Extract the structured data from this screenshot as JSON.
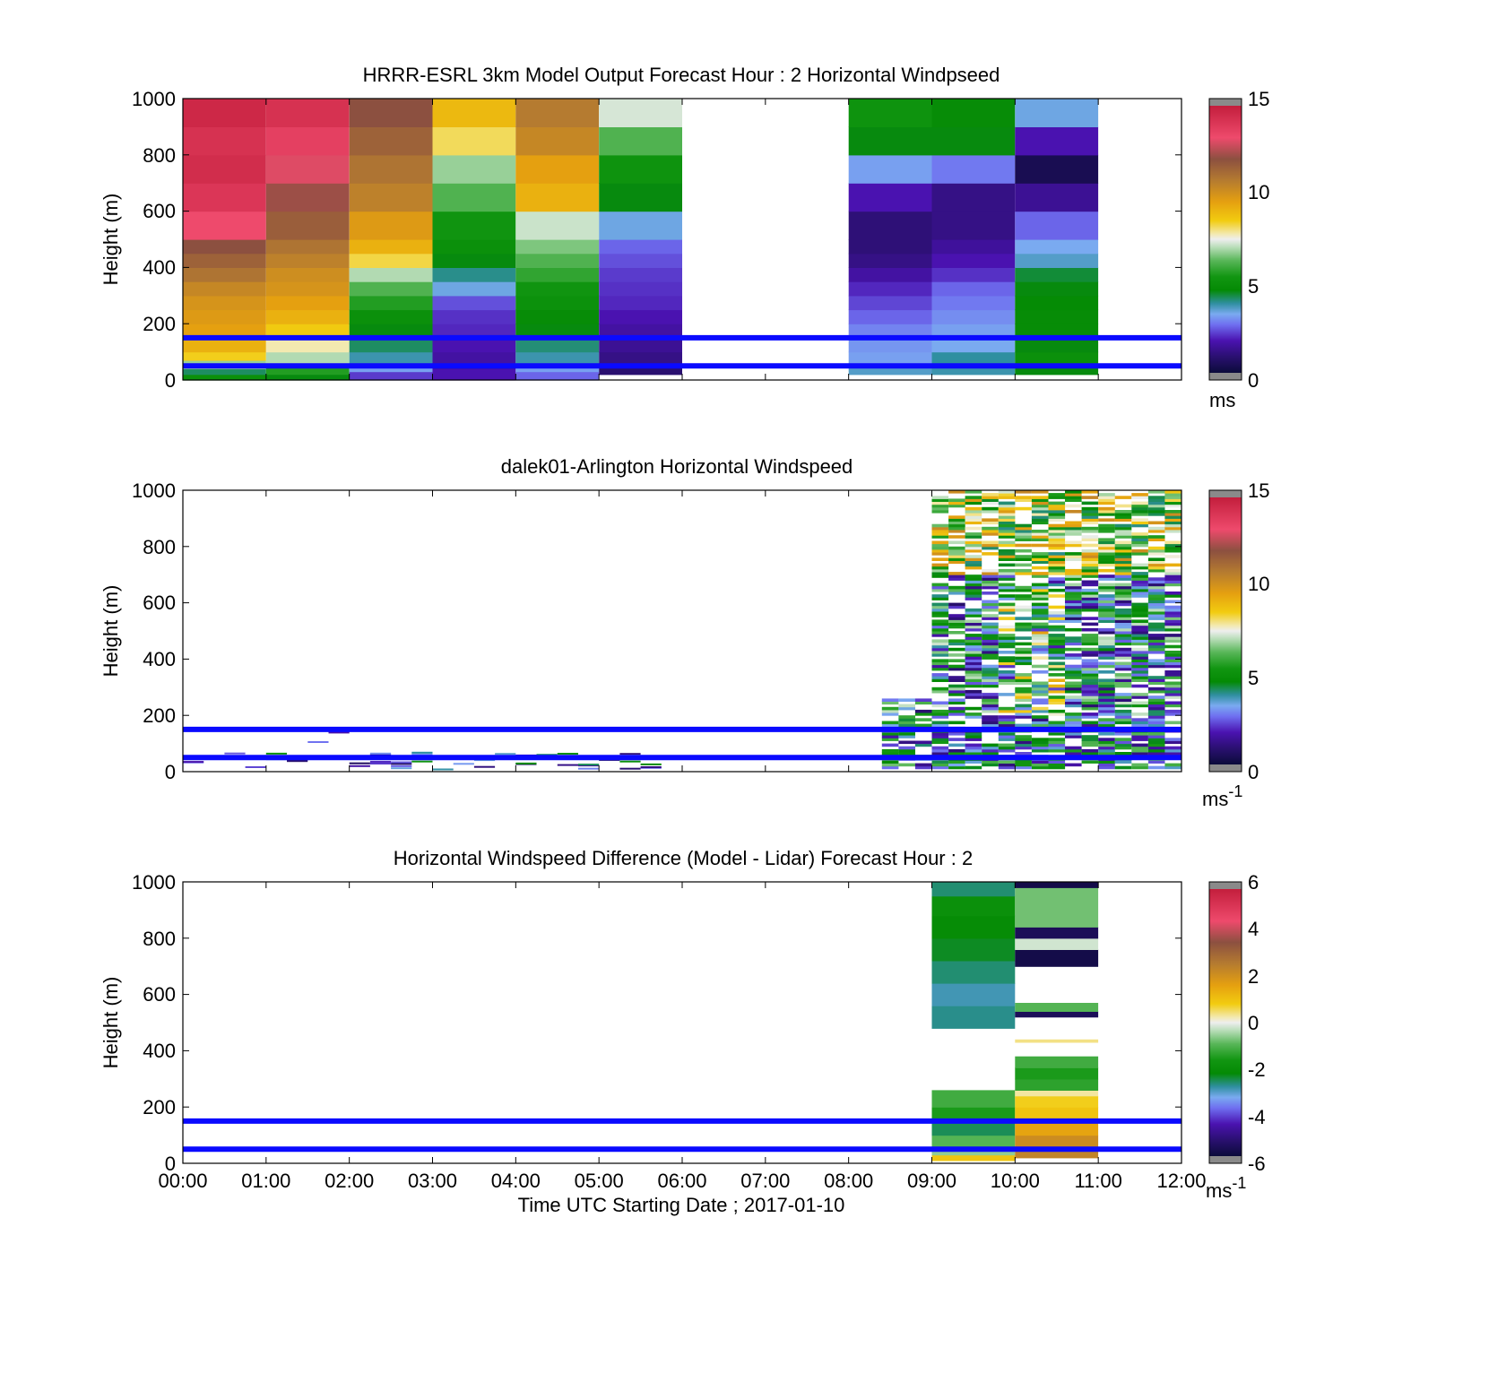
{
  "chart_data": [
    {
      "type": "heatmap",
      "title": "HRRR-ESRL 3km Model Output   Forecast Hour : 2 Horizontal Windpseed",
      "ylabel": "Height (m)",
      "ylim": [
        0,
        1000
      ],
      "yticks": [
        "0",
        "200",
        "400",
        "600",
        "800",
        "1000"
      ],
      "x_range_hours": [
        0,
        12
      ],
      "colorbar": {
        "min": 0,
        "max": 15,
        "ticks": [
          "0",
          "5",
          "10",
          "15"
        ],
        "unit": "ms"
      },
      "reference_lines_m": [
        50,
        150
      ],
      "columns": [
        {
          "x0": 0,
          "x1": 1,
          "cells": [
            [
              0,
              20,
              5
            ],
            [
              20,
              40,
              4.2
            ],
            [
              40,
              70,
              6.8
            ],
            [
              70,
              100,
              8.5
            ],
            [
              100,
              150,
              9.2
            ],
            [
              150,
              200,
              9.6
            ],
            [
              200,
              250,
              9.8
            ],
            [
              250,
              300,
              10
            ],
            [
              300,
              350,
              10.4
            ],
            [
              350,
              400,
              11
            ],
            [
              400,
              450,
              11.5
            ],
            [
              450,
              500,
              12
            ],
            [
              500,
              600,
              13.2
            ],
            [
              600,
              700,
              14
            ],
            [
              700,
              800,
              14.4
            ],
            [
              800,
              900,
              14.2
            ],
            [
              900,
              1000,
              14.6
            ]
          ]
        },
        {
          "x0": 1,
          "x1": 2,
          "cells": [
            [
              0,
              20,
              4.6
            ],
            [
              20,
              50,
              5.6
            ],
            [
              50,
              100,
              7
            ],
            [
              100,
              150,
              7.8
            ],
            [
              150,
              200,
              8.6
            ],
            [
              200,
              250,
              9.2
            ],
            [
              250,
              300,
              9.6
            ],
            [
              300,
              350,
              10
            ],
            [
              350,
              400,
              10.2
            ],
            [
              400,
              450,
              10.6
            ],
            [
              450,
              500,
              11
            ],
            [
              500,
              600,
              11.6
            ],
            [
              600,
              700,
              12.2
            ],
            [
              700,
              800,
              13
            ],
            [
              800,
              900,
              13.6
            ],
            [
              900,
              1000,
              14.2
            ]
          ]
        },
        {
          "x0": 2,
          "x1": 3,
          "cells": [
            [
              0,
              30,
              2.2
            ],
            [
              30,
              60,
              3.2
            ],
            [
              60,
              100,
              3.8
            ],
            [
              100,
              150,
              4.2
            ],
            [
              150,
              200,
              4.6
            ],
            [
              200,
              250,
              5
            ],
            [
              250,
              300,
              5.6
            ],
            [
              300,
              350,
              6.2
            ],
            [
              350,
              400,
              7
            ],
            [
              400,
              450,
              8.3
            ],
            [
              450,
              500,
              9.2
            ],
            [
              500,
              600,
              9.8
            ],
            [
              600,
              700,
              10.6
            ],
            [
              700,
              800,
              11
            ],
            [
              800,
              900,
              11.5
            ],
            [
              900,
              1000,
              12
            ]
          ]
        },
        {
          "x0": 3,
          "x1": 4,
          "cells": [
            [
              0,
              40,
              1.8
            ],
            [
              40,
              100,
              1.6
            ],
            [
              100,
              150,
              1.8
            ],
            [
              150,
              200,
              2
            ],
            [
              200,
              250,
              2.1
            ],
            [
              250,
              300,
              2.4
            ],
            [
              300,
              350,
              3.4
            ],
            [
              350,
              400,
              4
            ],
            [
              400,
              450,
              4.6
            ],
            [
              450,
              500,
              5
            ],
            [
              500,
              600,
              5.3
            ],
            [
              600,
              700,
              6.2
            ],
            [
              700,
              800,
              6.8
            ],
            [
              800,
              900,
              8.2
            ],
            [
              900,
              1000,
              9
            ]
          ]
        },
        {
          "x0": 4,
          "x1": 5,
          "cells": [
            [
              0,
              30,
              2.6
            ],
            [
              30,
              60,
              3.2
            ],
            [
              60,
              100,
              3.8
            ],
            [
              100,
              150,
              4.1
            ],
            [
              150,
              200,
              4.6
            ],
            [
              200,
              250,
              4.8
            ],
            [
              250,
              300,
              5.1
            ],
            [
              300,
              350,
              5.3
            ],
            [
              350,
              400,
              5.8
            ],
            [
              400,
              450,
              6.2
            ],
            [
              450,
              500,
              6.6
            ],
            [
              500,
              600,
              7.2
            ],
            [
              600,
              700,
              9.2
            ],
            [
              700,
              800,
              9.6
            ],
            [
              800,
              900,
              10.4
            ],
            [
              900,
              1000,
              10.8
            ]
          ]
        },
        {
          "x0": 5,
          "x1": 6,
          "cells": [
            [
              20,
              60,
              0.9
            ],
            [
              60,
              100,
              1.2
            ],
            [
              100,
              150,
              1.4
            ],
            [
              150,
              200,
              1.6
            ],
            [
              200,
              250,
              1.8
            ],
            [
              250,
              300,
              2
            ],
            [
              300,
              350,
              2.1
            ],
            [
              350,
              400,
              2.2
            ],
            [
              400,
              450,
              2.4
            ],
            [
              450,
              500,
              2.6
            ],
            [
              500,
              600,
              3.4
            ],
            [
              600,
              700,
              4.6
            ],
            [
              700,
              800,
              5.2
            ],
            [
              800,
              900,
              6.2
            ],
            [
              900,
              1000,
              7.3
            ]
          ]
        },
        {
          "x0": 8,
          "x1": 9,
          "cells": [
            [
              20,
              60,
              3.6
            ],
            [
              60,
              100,
              3.2
            ],
            [
              100,
              150,
              3.1
            ],
            [
              150,
              200,
              2.9
            ],
            [
              200,
              250,
              2.6
            ],
            [
              250,
              300,
              2.3
            ],
            [
              300,
              350,
              2
            ],
            [
              350,
              400,
              1.6
            ],
            [
              400,
              450,
              1.2
            ],
            [
              450,
              500,
              1
            ],
            [
              500,
              600,
              1
            ],
            [
              600,
              700,
              1.8
            ],
            [
              700,
              800,
              3.2
            ],
            [
              800,
              900,
              4.6
            ],
            [
              900,
              1000,
              5.2
            ]
          ]
        },
        {
          "x0": 9,
          "x1": 10,
          "cells": [
            [
              20,
              60,
              3.8
            ],
            [
              60,
              100,
              3.9
            ],
            [
              100,
              150,
              3.3
            ],
            [
              150,
              200,
              3.2
            ],
            [
              200,
              250,
              3
            ],
            [
              250,
              300,
              2.8
            ],
            [
              300,
              350,
              2.6
            ],
            [
              350,
              400,
              2.1
            ],
            [
              400,
              450,
              1.8
            ],
            [
              450,
              500,
              1.5
            ],
            [
              500,
              600,
              1.2
            ],
            [
              600,
              700,
              1.2
            ],
            [
              700,
              800,
              2.8
            ],
            [
              800,
              900,
              4.6
            ],
            [
              900,
              1000,
              4.8
            ]
          ]
        },
        {
          "x0": 10,
          "x1": 11,
          "cells": [
            [
              20,
              60,
              4.6
            ],
            [
              60,
              100,
              5
            ],
            [
              100,
              150,
              4.6
            ],
            [
              150,
              200,
              4.8
            ],
            [
              200,
              250,
              4.8
            ],
            [
              250,
              300,
              4.7
            ],
            [
              300,
              350,
              4.6
            ],
            [
              350,
              400,
              4.4
            ],
            [
              400,
              450,
              3.6
            ],
            [
              450,
              500,
              3.3
            ],
            [
              500,
              600,
              2.6
            ],
            [
              600,
              700,
              1.4
            ],
            [
              700,
              800,
              0.4
            ],
            [
              800,
              900,
              1.8
            ],
            [
              900,
              1000,
              3.4
            ]
          ]
        }
      ]
    },
    {
      "type": "heatmap",
      "title": "dalek01-Arlington  Horizontal Windspeed",
      "ylabel": "Height (m)",
      "ylim": [
        0,
        1000
      ],
      "yticks": [
        "0",
        "200",
        "400",
        "600",
        "800",
        "1000"
      ],
      "x_range_hours": [
        0,
        12
      ],
      "colorbar": {
        "min": 0,
        "max": 15,
        "ticks": [
          "0",
          "5",
          "10",
          "15"
        ],
        "unit": "ms",
        "unit_exp": "-1"
      },
      "reference_lines_m": [
        50,
        150
      ],
      "data_note": "lidar returns present mainly 08:30-11:50 UTC up to 1000 m; sparse low-level returns 00:00-05:30 UTC below 170 m"
    },
    {
      "type": "heatmap",
      "title": "Horizontal Windspeed Difference (Model - Lidar) Forecast Hour : 2",
      "ylabel": "Height (m)",
      "xlabel": "Time UTC  Starting Date ; 2017-01-10",
      "ylim": [
        0,
        1000
      ],
      "yticks": [
        "0",
        "200",
        "400",
        "600",
        "800",
        "1000"
      ],
      "xticks": [
        "00:00",
        "01:00",
        "02:00",
        "03:00",
        "04:00",
        "05:00",
        "06:00",
        "07:00",
        "08:00",
        "09:00",
        "10:00",
        "11:00",
        "12:00"
      ],
      "x_range_hours": [
        0,
        12
      ],
      "colorbar": {
        "min": -6,
        "max": 6,
        "ticks": [
          "-6",
          "-4",
          "-2",
          "0",
          "2",
          "4",
          "6"
        ],
        "unit": "ms",
        "unit_exp": "-1"
      },
      "reference_lines_m": [
        50,
        150
      ],
      "columns": [
        {
          "x0": 9,
          "x1": 10,
          "cells": [
            [
              10,
              30,
              1
            ],
            [
              30,
              60,
              -0.6
            ],
            [
              60,
              100,
              -1
            ],
            [
              100,
              150,
              -2.6
            ],
            [
              150,
              200,
              -1.6
            ],
            [
              200,
              260,
              -1.2
            ],
            [
              480,
              560,
              -2.8
            ],
            [
              560,
              640,
              -3
            ],
            [
              640,
              720,
              -2.7
            ],
            [
              720,
              800,
              -2.4
            ],
            [
              800,
              880,
              -2.2
            ],
            [
              880,
              950,
              -2
            ],
            [
              950,
              1000,
              -2.7
            ]
          ]
        },
        {
          "x0": 10,
          "x1": 11,
          "cells": [
            [
              20,
              60,
              2.4
            ],
            [
              60,
              100,
              2.2
            ],
            [
              100,
              150,
              1.6
            ],
            [
              150,
              200,
              1
            ],
            [
              200,
              240,
              0.8
            ],
            [
              240,
              260,
              0.3
            ],
            [
              260,
              300,
              -1.4
            ],
            [
              300,
              340,
              -1.6
            ],
            [
              340,
              380,
              -1.2
            ],
            [
              430,
              440,
              0.4
            ],
            [
              520,
              540,
              -5.6
            ],
            [
              540,
              570,
              -1
            ],
            [
              700,
              760,
              -5.8
            ],
            [
              760,
              800,
              -0.2
            ],
            [
              800,
              840,
              -5.6
            ],
            [
              840,
              980,
              -0.8
            ],
            [
              980,
              1000,
              -5.8
            ]
          ]
        }
      ]
    }
  ]
}
